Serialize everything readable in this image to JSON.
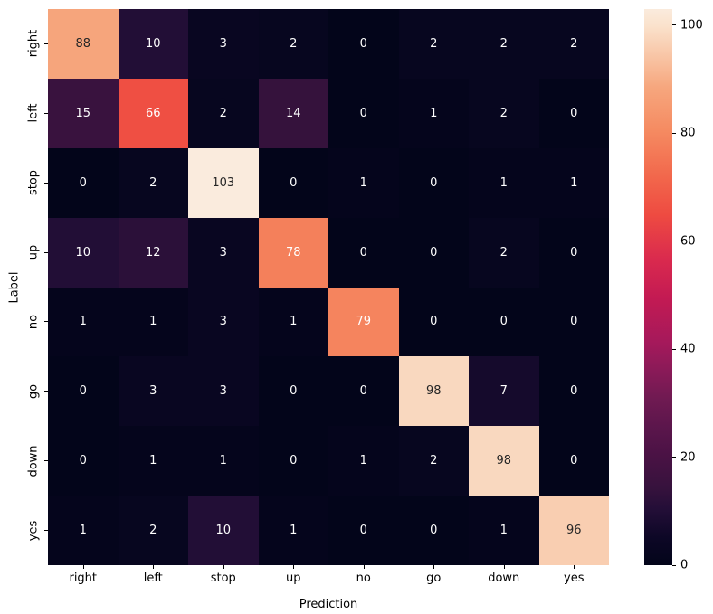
{
  "chart_data": {
    "type": "heatmap",
    "title": "",
    "xlabel": "Prediction",
    "ylabel": "Label",
    "x_tick_labels": [
      "right",
      "left",
      "stop",
      "up",
      "no",
      "go",
      "down",
      "yes"
    ],
    "y_tick_labels": [
      "right",
      "left",
      "stop",
      "up",
      "no",
      "go",
      "down",
      "yes"
    ],
    "matrix": [
      [
        88,
        10,
        3,
        2,
        0,
        2,
        2,
        2
      ],
      [
        15,
        66,
        2,
        14,
        0,
        1,
        2,
        0
      ],
      [
        0,
        2,
        103,
        0,
        1,
        0,
        1,
        1
      ],
      [
        10,
        12,
        3,
        78,
        0,
        0,
        2,
        0
      ],
      [
        1,
        1,
        3,
        1,
        79,
        0,
        0,
        0
      ],
      [
        0,
        3,
        3,
        0,
        0,
        98,
        7,
        0
      ],
      [
        0,
        1,
        1,
        0,
        1,
        2,
        98,
        0
      ],
      [
        1,
        2,
        10,
        1,
        0,
        0,
        1,
        96
      ]
    ],
    "vmin": 0,
    "vmax": 103,
    "colorbar_ticks": [
      0,
      20,
      40,
      60,
      80,
      100
    ],
    "colormap_name": "rocket",
    "colormap_stops": [
      {
        "t": 0.0,
        "color": "#03051A"
      },
      {
        "t": 0.05,
        "color": "#0D0726"
      },
      {
        "t": 0.1,
        "color": "#230E37"
      },
      {
        "t": 0.14,
        "color": "#37123D"
      },
      {
        "t": 0.2,
        "color": "#4B1245"
      },
      {
        "t": 0.25,
        "color": "#5C164C"
      },
      {
        "t": 0.3,
        "color": "#701A52"
      },
      {
        "t": 0.35,
        "color": "#8A1A58"
      },
      {
        "t": 0.4,
        "color": "#A5195B"
      },
      {
        "t": 0.48,
        "color": "#C31A53"
      },
      {
        "t": 0.55,
        "color": "#DA2A4E"
      },
      {
        "t": 0.63,
        "color": "#EE4B41"
      },
      {
        "t": 0.7,
        "color": "#F2684C"
      },
      {
        "t": 0.78,
        "color": "#F58A61"
      },
      {
        "t": 0.86,
        "color": "#F6A77E"
      },
      {
        "t": 0.9,
        "color": "#F8BD9B"
      },
      {
        "t": 0.97,
        "color": "#FAE2CC"
      },
      {
        "t": 1.0,
        "color": "#FAEBDD"
      }
    ],
    "annotation_color_dark": "#262626",
    "annotation_color_light": "#FFFFFF",
    "luminance_threshold": 0.408,
    "axis_text_color": "#000000",
    "background_color": "#FFFFFF"
  }
}
